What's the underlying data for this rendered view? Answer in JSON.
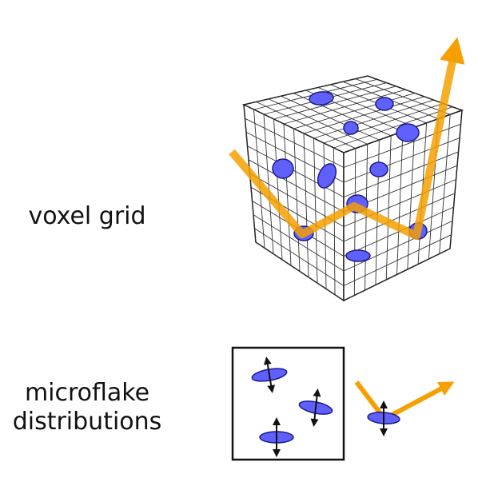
{
  "labels": {
    "voxel_grid": "voxel grid",
    "microflake_distributions_line1": "microflake",
    "microflake_distributions_line2": "distributions"
  },
  "colors": {
    "grid_line": "#333333",
    "flake_fill": "#6060ff",
    "flake_stroke": "#1a1a8a",
    "ray": "#f5a000",
    "box_border": "#111111"
  },
  "icons": {
    "ray_arrow": "arrow",
    "flake_normal": "double-headed-arrow"
  }
}
